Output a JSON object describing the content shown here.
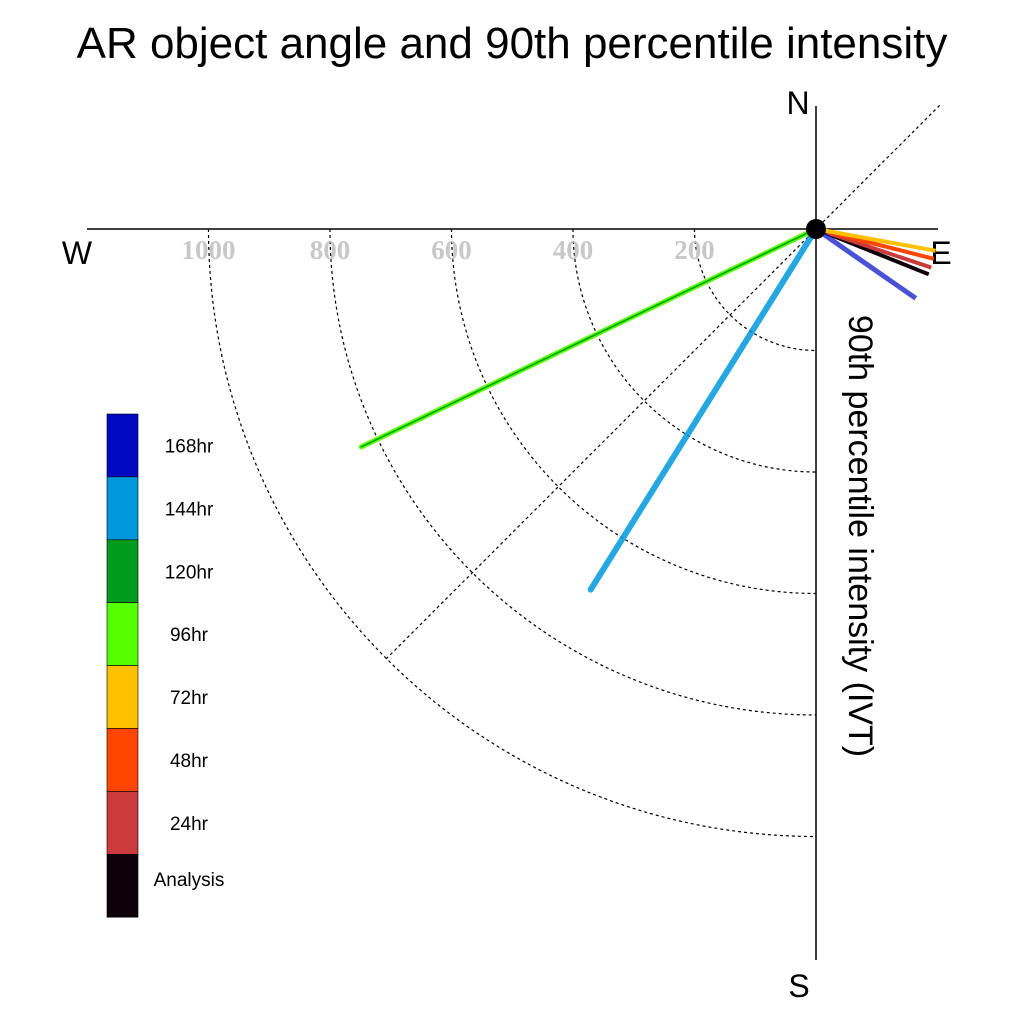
{
  "chart_data": {
    "type": "polar-vector",
    "title": "AR object angle and 90th percentile intensity",
    "ylabel": "90th percentile intensity (IVT)",
    "compass": {
      "N": "N",
      "E": "E",
      "S": "S",
      "W": "W"
    },
    "ticks": [
      200,
      400,
      600,
      800,
      1000
    ],
    "tick_labels": [
      "200",
      "400",
      "600",
      "800",
      "1000"
    ],
    "max_value": 1200,
    "series": [
      {
        "name": "Analysis",
        "color": "#0d0008",
        "angle_deg": -21.9,
        "intensity": 200
      },
      {
        "name": "24hr",
        "color": "#cc3b3b",
        "angle_deg": -18.5,
        "intensity": 200
      },
      {
        "name": "48hr",
        "color": "#ff4500",
        "angle_deg": -14.2,
        "intensity": 200
      },
      {
        "name": "72hr",
        "color": "#ffc000",
        "angle_deg": -10.3,
        "intensity": 200
      },
      {
        "name": "96hr",
        "color": "#55ff00",
        "angle_deg": -154.4,
        "intensity": 830
      },
      {
        "name": "120hr",
        "color": "#009b1a",
        "angle_deg": -154.4,
        "intensity": 830
      },
      {
        "name": "144hr",
        "color": "#0098dd",
        "angle_deg": -122.0,
        "intensity": 700
      },
      {
        "name": "168hr",
        "color": "#0008c2",
        "angle_deg": -34.8,
        "intensity": 200
      }
    ],
    "legend": {
      "position": "lower-left",
      "entries": [
        {
          "label": "168hr",
          "color": "#0008c2"
        },
        {
          "label": "144hr",
          "color": "#0098dd"
        },
        {
          "label": "120hr",
          "color": "#009b1a"
        },
        {
          "label": "96hr",
          "color": "#55ff00"
        },
        {
          "label": "72hr",
          "color": "#ffc000"
        },
        {
          "label": "48hr",
          "color": "#ff4500"
        },
        {
          "label": "24hr",
          "color": "#cc3b3b"
        },
        {
          "label": "Analysis",
          "color": "#0d0008"
        }
      ]
    }
  }
}
